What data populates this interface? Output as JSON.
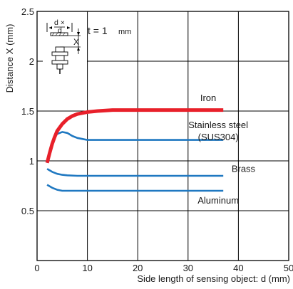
{
  "chart_data": {
    "type": "line",
    "xlabel": "Side length of sensing object: d (mm)",
    "ylabel": "Distance X (mm)",
    "xlim": [
      0,
      50
    ],
    "ylim": [
      0,
      2.5
    ],
    "x_ticks": [
      "0",
      "10",
      "20",
      "30",
      "40",
      "50"
    ],
    "y_ticks": [
      "0.5",
      "1",
      "1.5",
      "2",
      "2.5"
    ],
    "grid": true,
    "colors": {
      "iron": "#e8202a",
      "others": "#1f78c1",
      "grid": "#000000"
    },
    "series": [
      {
        "name": "Iron",
        "label_lines": [
          "Iron"
        ],
        "color": "#e8202a",
        "x": [
          2,
          2.5,
          3,
          3.5,
          4,
          5,
          6,
          7,
          8,
          10,
          12,
          15,
          20,
          25,
          30,
          37
        ],
        "y": [
          0.98,
          1.08,
          1.17,
          1.24,
          1.3,
          1.37,
          1.42,
          1.45,
          1.47,
          1.49,
          1.5,
          1.51,
          1.51,
          1.51,
          1.51,
          1.51
        ]
      },
      {
        "name": "Stainless steel (SUS304)",
        "label_lines": [
          "Stainless steel",
          "(SUS304)"
        ],
        "color": "#1f78c1",
        "x": [
          2,
          2.5,
          3,
          3.5,
          4,
          5,
          6,
          7,
          8,
          9,
          10,
          12,
          15,
          20,
          30,
          37
        ],
        "y": [
          0.98,
          1.1,
          1.19,
          1.24,
          1.27,
          1.29,
          1.28,
          1.25,
          1.23,
          1.22,
          1.21,
          1.21,
          1.21,
          1.21,
          1.21,
          1.21
        ]
      },
      {
        "name": "Brass",
        "label_lines": [
          "Brass"
        ],
        "color": "#1f78c1",
        "x": [
          2,
          3,
          4,
          5,
          6,
          8,
          10,
          20,
          30,
          37
        ],
        "y": [
          0.92,
          0.89,
          0.87,
          0.86,
          0.855,
          0.85,
          0.85,
          0.85,
          0.85,
          0.85
        ]
      },
      {
        "name": "Aluminum",
        "label_lines": [
          "Aluminum"
        ],
        "color": "#1f78c1",
        "x": [
          2,
          3,
          4,
          5,
          6,
          8,
          10,
          20,
          30,
          37
        ],
        "y": [
          0.76,
          0.73,
          0.71,
          0.7,
          0.7,
          0.7,
          0.7,
          0.7,
          0.7,
          0.7
        ]
      }
    ],
    "inset": {
      "top_label": "d ×",
      "mid_label": "d",
      "x_label": "X",
      "thickness_label": "t = 1",
      "thickness_unit": "mm"
    }
  }
}
